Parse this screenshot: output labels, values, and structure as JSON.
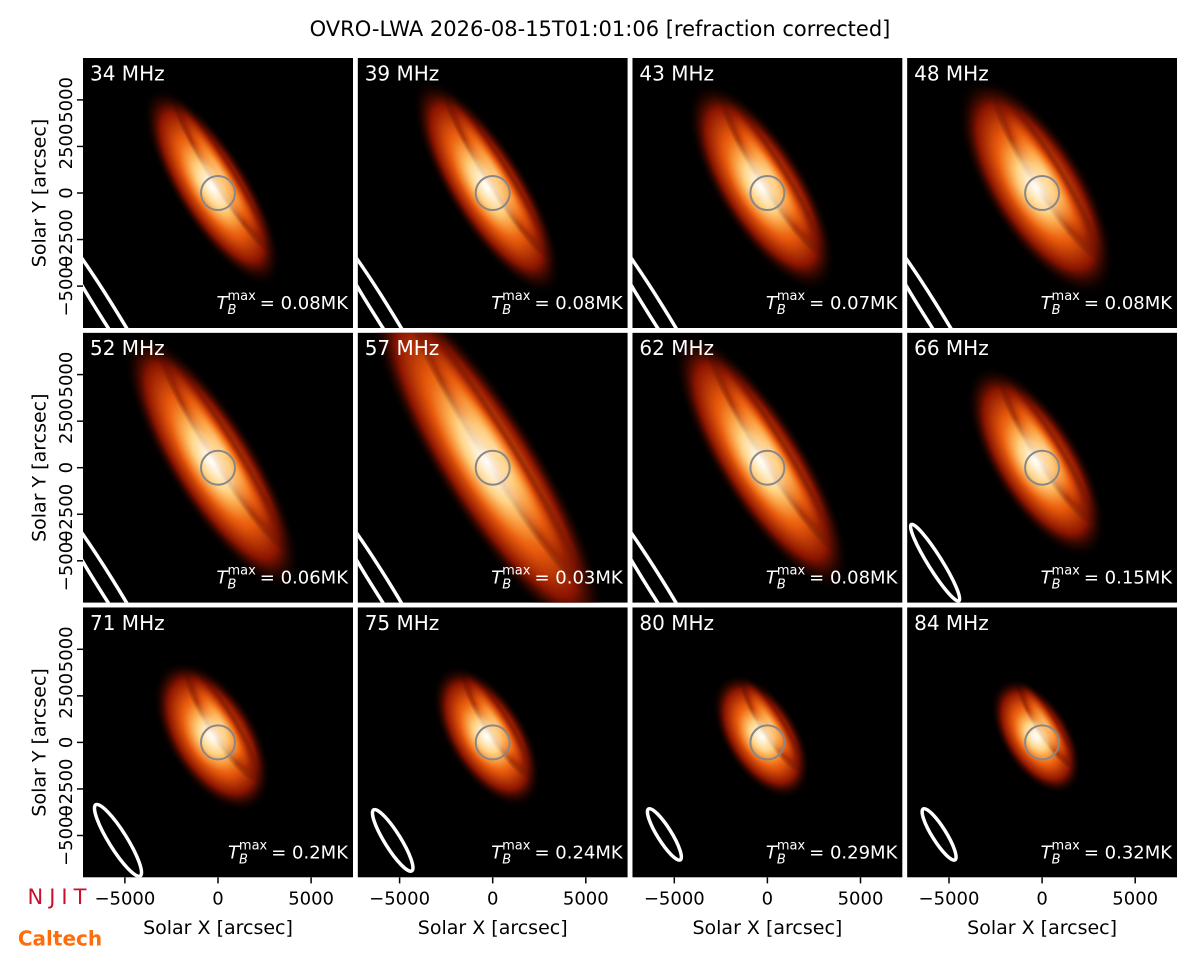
{
  "title": "OVRO-LWA 2026-08-15T01:01:06 [refraction corrected]",
  "logos": [
    "NJIT",
    "Caltech"
  ],
  "chart_data": [
    {
      "type": "image",
      "title": "34 MHz",
      "annotation": {
        "symbol": "T",
        "sub": "B",
        "sup": "max",
        "text": "= 0.08MK"
      },
      "xlim": [
        -7250,
        7250
      ],
      "ylim": [
        -7250,
        7250
      ],
      "ylabel": "Solar Y [arcsec]",
      "yticks": [
        {
          "value": -5000,
          "label": "−5000"
        },
        {
          "value": -2500,
          "label": "−2500"
        },
        0,
        2500,
        5000
      ]
    },
    {
      "type": "image",
      "title": "39 MHz",
      "annotation": {
        "symbol": "T",
        "sub": "B",
        "sup": "max",
        "text": "= 0.08MK"
      },
      "xlim": [
        -7250,
        7250
      ],
      "ylim": [
        -7250,
        7250
      ]
    },
    {
      "type": "image",
      "title": "43 MHz",
      "annotation": {
        "symbol": "T",
        "sub": "B",
        "sup": "max",
        "text": "= 0.07MK"
      },
      "xlim": [
        -7250,
        7250
      ],
      "ylim": [
        -7250,
        7250
      ]
    },
    {
      "type": "image",
      "title": "48 MHz",
      "annotation": {
        "symbol": "T",
        "sub": "B",
        "sup": "max",
        "text": "= 0.08MK"
      },
      "xlim": [
        -7250,
        7250
      ],
      "ylim": [
        -7250,
        7250
      ]
    },
    {
      "type": "image",
      "title": "52 MHz",
      "annotation": {
        "symbol": "T",
        "sub": "B",
        "sup": "max",
        "text": "= 0.06MK"
      },
      "xlim": [
        -7250,
        7250
      ],
      "ylim": [
        -7250,
        7250
      ],
      "ylabel": "Solar Y [arcsec]",
      "yticks": [
        {
          "value": -5000,
          "label": "−5000"
        },
        {
          "value": -2500,
          "label": "−2500"
        },
        0,
        2500,
        5000
      ]
    },
    {
      "type": "image",
      "title": "57 MHz",
      "annotation": {
        "symbol": "T",
        "sub": "B",
        "sup": "max",
        "text": "= 0.03MK"
      },
      "xlim": [
        -7250,
        7250
      ],
      "ylim": [
        -7250,
        7250
      ]
    },
    {
      "type": "image",
      "title": "62 MHz",
      "annotation": {
        "symbol": "T",
        "sub": "B",
        "sup": "max",
        "text": "= 0.08MK"
      },
      "xlim": [
        -7250,
        7250
      ],
      "ylim": [
        -7250,
        7250
      ]
    },
    {
      "type": "image",
      "title": "66 MHz",
      "annotation": {
        "symbol": "T",
        "sub": "B",
        "sup": "max",
        "text": "= 0.15MK"
      },
      "xlim": [
        -7250,
        7250
      ],
      "ylim": [
        -7250,
        7250
      ]
    },
    {
      "type": "image",
      "title": "71 MHz",
      "annotation": {
        "symbol": "T",
        "sub": "B",
        "sup": "max",
        "text": "= 0.2MK"
      },
      "xlim": [
        -7250,
        7250
      ],
      "ylim": [
        -7250,
        7250
      ],
      "ylabel": "Solar Y [arcsec]",
      "yticks": [
        {
          "value": -5000,
          "label": "−5000"
        },
        {
          "value": -2500,
          "label": "−2500"
        },
        0,
        2500,
        5000
      ],
      "xlabel": "Solar X [arcsec]",
      "xticks": [
        {
          "value": -5000,
          "label": "−5000"
        },
        0,
        5000
      ]
    },
    {
      "type": "image",
      "title": "75 MHz",
      "annotation": {
        "symbol": "T",
        "sub": "B",
        "sup": "max",
        "text": "= 0.24MK"
      },
      "xlim": [
        -7250,
        7250
      ],
      "ylim": [
        -7250,
        7250
      ],
      "xlabel": "Solar X [arcsec]",
      "xticks": [
        {
          "value": -5000,
          "label": "−5000"
        },
        0,
        5000
      ]
    },
    {
      "type": "image",
      "title": "80 MHz",
      "annotation": {
        "symbol": "T",
        "sub": "B",
        "sup": "max",
        "text": "= 0.29MK"
      },
      "xlim": [
        -7250,
        7250
      ],
      "ylim": [
        -7250,
        7250
      ],
      "xlabel": "Solar X [arcsec]",
      "xticks": [
        {
          "value": -5000,
          "label": "−5000"
        },
        0,
        5000
      ]
    },
    {
      "type": "image",
      "title": "84 MHz",
      "annotation": {
        "symbol": "T",
        "sub": "B",
        "sup": "max",
        "text": "= 0.32MK"
      },
      "xlim": [
        -7250,
        7250
      ],
      "ylim": [
        -7250,
        7250
      ],
      "xlabel": "Solar X [arcsec]",
      "xticks": [
        {
          "value": -5000,
          "label": "−5000"
        },
        0,
        5000
      ]
    }
  ]
}
